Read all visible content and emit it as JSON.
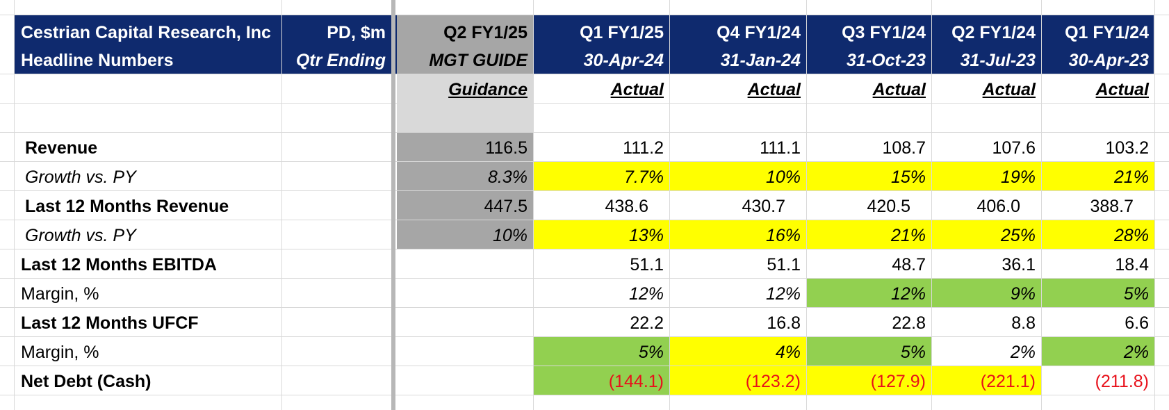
{
  "header": {
    "row1": {
      "title": "Cestrian Capital Research, Inc",
      "units": "PD, $m",
      "periods": [
        "Q2 FY1/25",
        "Q1 FY1/25",
        "Q4 FY1/24",
        "Q3 FY1/24",
        "Q2 FY1/24",
        "Q1 FY1/24"
      ]
    },
    "row2": {
      "title": "Headline Numbers",
      "units": "Qtr Ending",
      "periods": [
        "MGT GUIDE",
        "30-Apr-24",
        "31-Jan-24",
        "31-Oct-23",
        "31-Jul-23",
        "30-Apr-23"
      ]
    },
    "row3": {
      "periods": [
        "Guidance",
        "Actual",
        "Actual",
        "Actual",
        "Actual",
        "Actual"
      ]
    }
  },
  "rows": [
    {
      "label": "Revenue",
      "values": [
        "116.5",
        "111.2",
        "111.1",
        "108.7",
        "107.6",
        "103.2"
      ]
    },
    {
      "label": "Growth vs. PY",
      "values": [
        "8.3%",
        "7.7%",
        "10%",
        "15%",
        "19%",
        "21%"
      ]
    },
    {
      "label": "Last 12 Months Revenue",
      "values": [
        "447.5",
        "438.6",
        "430.7",
        "420.5",
        "406.0",
        "388.7"
      ]
    },
    {
      "label": "Growth vs. PY",
      "values": [
        "10%",
        "13%",
        "16%",
        "21%",
        "25%",
        "28%"
      ]
    },
    {
      "label": "Last 12 Months EBITDA",
      "values": [
        "",
        "51.1",
        "51.1",
        "48.7",
        "36.1",
        "18.4"
      ]
    },
    {
      "label": "Margin, %",
      "values": [
        "",
        "12%",
        "12%",
        "12%",
        "9%",
        "5%"
      ]
    },
    {
      "label": "Last 12 Months UFCF",
      "values": [
        "",
        "22.2",
        "16.8",
        "22.8",
        "8.8",
        "6.6"
      ]
    },
    {
      "label": "Margin, %",
      "values": [
        "",
        "5%",
        "4%",
        "5%",
        "2%",
        "2%"
      ]
    },
    {
      "label": "Net Debt (Cash)",
      "values": [
        "",
        "(144.1)",
        "(123.2)",
        "(127.9)",
        "(221.1)",
        "(211.8)"
      ]
    }
  ],
  "colors": {
    "navy_header": "#0f2a6e",
    "guidance_grey": "#a6a6a6",
    "guidance_light_grey": "#d9d9d9",
    "highlight_yellow": "#ffff00",
    "highlight_green": "#92d050",
    "negative_red": "#e8101a",
    "gridline": "#d9d9d9"
  }
}
